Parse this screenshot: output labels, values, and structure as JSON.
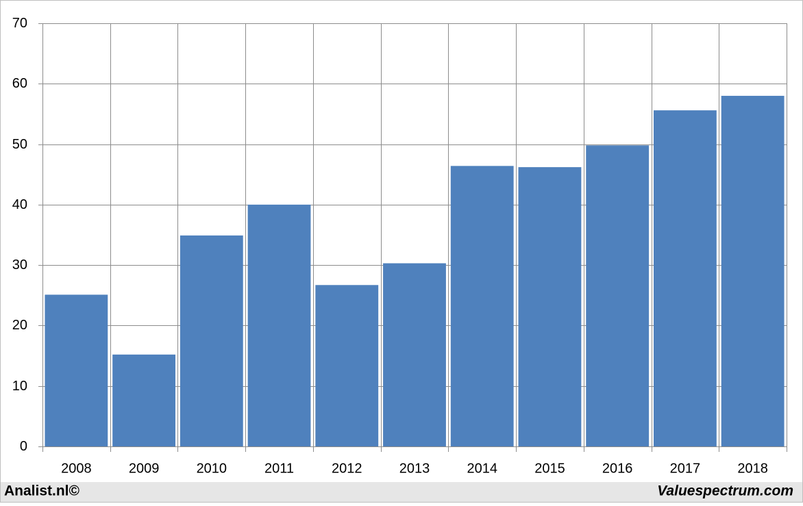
{
  "chart_data": {
    "type": "bar",
    "categories": [
      "2008",
      "2009",
      "2010",
      "2011",
      "2012",
      "2013",
      "2014",
      "2015",
      "2016",
      "2017",
      "2018"
    ],
    "values": [
      25.1,
      15.2,
      34.9,
      40.0,
      26.7,
      30.3,
      46.4,
      46.2,
      49.8,
      55.6,
      58.0
    ],
    "color": "#4f81bd",
    "ylim": [
      0,
      70
    ],
    "yticks": [
      0,
      10,
      20,
      30,
      40,
      50,
      60,
      70
    ],
    "grid": true,
    "source": "Analist.nl©",
    "credit": "Valuespectrum.com"
  }
}
